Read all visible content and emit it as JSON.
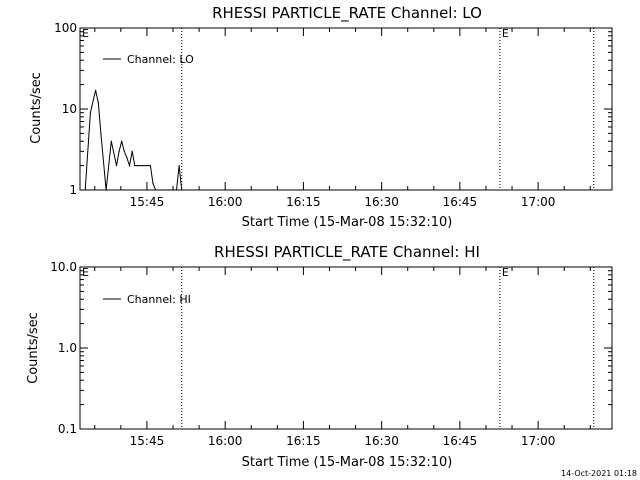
{
  "timestamp": "14-Oct-2021 01:18",
  "chart_data": [
    {
      "type": "line",
      "title": "RHESSI PARTICLE_RATE Channel: LO",
      "xlabel": "Start Time (15-Mar-08 15:32:10)",
      "ylabel": "Counts/sec",
      "yscale": "log",
      "ylim": [
        1,
        100
      ],
      "xlim": [
        "15:32:10",
        "17:14:10"
      ],
      "xticks": [
        "15:45",
        "16:00",
        "16:15",
        "16:30",
        "16:45",
        "17:00"
      ],
      "yticks": [
        "1",
        "10",
        "100"
      ],
      "event_labels": [
        "E",
        "E"
      ],
      "legend": {
        "label": "Channel: LO",
        "position": "upper-left"
      },
      "series": [
        {
          "name": "Channel: LO",
          "x": [
            "15:33:10",
            "15:34:10",
            "15:35:10",
            "15:35:40",
            "15:36:10",
            "15:37:10",
            "15:38:10",
            "15:39:10",
            "15:39:40",
            "15:40:10",
            "15:40:40",
            "15:41:10",
            "15:41:40",
            "15:42:10",
            "15:42:40",
            "15:43:10",
            "15:43:40",
            "15:44:10",
            "15:44:40",
            "15:45:10",
            "15:45:40",
            "15:46:10",
            "15:46:40",
            "15:47:10",
            "15:47:40",
            "15:48:10",
            "15:48:40",
            "15:49:10",
            "15:49:40",
            "15:50:10",
            "15:50:40",
            "15:51:10",
            "15:51:40"
          ],
          "values": [
            0.8,
            9,
            17,
            12,
            5,
            0.8,
            4,
            2,
            3,
            4,
            3,
            2.5,
            2,
            3,
            2,
            2,
            2,
            2,
            2,
            2,
            2,
            1.2,
            0.8,
            0.8,
            0.8,
            0.8,
            0.8,
            0.8,
            0.8,
            0.8,
            0.8,
            2,
            0.8
          ]
        }
      ]
    },
    {
      "type": "line",
      "title": "RHESSI PARTICLE_RATE Channel: HI",
      "xlabel": "Start Time (15-Mar-08 15:32:10)",
      "ylabel": "Counts/sec",
      "yscale": "log",
      "ylim": [
        0.1,
        10
      ],
      "xlim": [
        "15:32:10",
        "17:14:10"
      ],
      "xticks": [
        "15:45",
        "16:00",
        "16:15",
        "16:30",
        "16:45",
        "17:00"
      ],
      "yticks": [
        "0.1",
        "1.0",
        "10.0"
      ],
      "event_labels": [
        "E",
        "E"
      ],
      "legend": {
        "label": "Channel: HI",
        "position": "upper-left"
      },
      "series": [
        {
          "name": "Channel: HI",
          "x": [],
          "values": []
        }
      ]
    }
  ]
}
